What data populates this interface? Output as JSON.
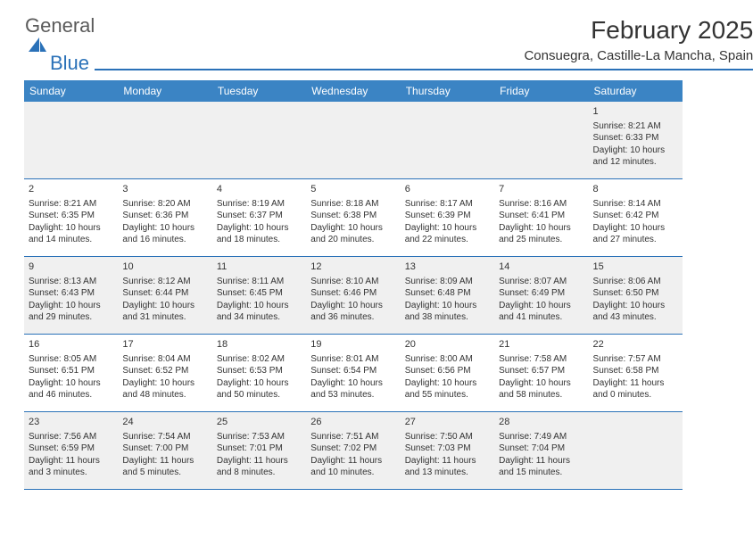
{
  "brand": {
    "text_general": "General",
    "text_blue": "Blue",
    "color_blue": "#2a71b8",
    "color_gray": "#5a5a5a"
  },
  "header": {
    "title": "February 2025",
    "location": "Consuegra, Castille-La Mancha, Spain"
  },
  "colors": {
    "header_bg": "#3b84c4",
    "header_fg": "#ffffff",
    "rule": "#2a71b8",
    "alt_row": "#f0f0f0",
    "text": "#333333"
  },
  "day_names": [
    "Sunday",
    "Monday",
    "Tuesday",
    "Wednesday",
    "Thursday",
    "Friday",
    "Saturday"
  ],
  "weeks": [
    {
      "alt": true,
      "days": [
        null,
        null,
        null,
        null,
        null,
        null,
        {
          "num": "1",
          "sunrise": "Sunrise: 8:21 AM",
          "sunset": "Sunset: 6:33 PM",
          "daylight": "Daylight: 10 hours and 12 minutes."
        }
      ]
    },
    {
      "alt": false,
      "days": [
        {
          "num": "2",
          "sunrise": "Sunrise: 8:21 AM",
          "sunset": "Sunset: 6:35 PM",
          "daylight": "Daylight: 10 hours and 14 minutes."
        },
        {
          "num": "3",
          "sunrise": "Sunrise: 8:20 AM",
          "sunset": "Sunset: 6:36 PM",
          "daylight": "Daylight: 10 hours and 16 minutes."
        },
        {
          "num": "4",
          "sunrise": "Sunrise: 8:19 AM",
          "sunset": "Sunset: 6:37 PM",
          "daylight": "Daylight: 10 hours and 18 minutes."
        },
        {
          "num": "5",
          "sunrise": "Sunrise: 8:18 AM",
          "sunset": "Sunset: 6:38 PM",
          "daylight": "Daylight: 10 hours and 20 minutes."
        },
        {
          "num": "6",
          "sunrise": "Sunrise: 8:17 AM",
          "sunset": "Sunset: 6:39 PM",
          "daylight": "Daylight: 10 hours and 22 minutes."
        },
        {
          "num": "7",
          "sunrise": "Sunrise: 8:16 AM",
          "sunset": "Sunset: 6:41 PM",
          "daylight": "Daylight: 10 hours and 25 minutes."
        },
        {
          "num": "8",
          "sunrise": "Sunrise: 8:14 AM",
          "sunset": "Sunset: 6:42 PM",
          "daylight": "Daylight: 10 hours and 27 minutes."
        }
      ]
    },
    {
      "alt": true,
      "days": [
        {
          "num": "9",
          "sunrise": "Sunrise: 8:13 AM",
          "sunset": "Sunset: 6:43 PM",
          "daylight": "Daylight: 10 hours and 29 minutes."
        },
        {
          "num": "10",
          "sunrise": "Sunrise: 8:12 AM",
          "sunset": "Sunset: 6:44 PM",
          "daylight": "Daylight: 10 hours and 31 minutes."
        },
        {
          "num": "11",
          "sunrise": "Sunrise: 8:11 AM",
          "sunset": "Sunset: 6:45 PM",
          "daylight": "Daylight: 10 hours and 34 minutes."
        },
        {
          "num": "12",
          "sunrise": "Sunrise: 8:10 AM",
          "sunset": "Sunset: 6:46 PM",
          "daylight": "Daylight: 10 hours and 36 minutes."
        },
        {
          "num": "13",
          "sunrise": "Sunrise: 8:09 AM",
          "sunset": "Sunset: 6:48 PM",
          "daylight": "Daylight: 10 hours and 38 minutes."
        },
        {
          "num": "14",
          "sunrise": "Sunrise: 8:07 AM",
          "sunset": "Sunset: 6:49 PM",
          "daylight": "Daylight: 10 hours and 41 minutes."
        },
        {
          "num": "15",
          "sunrise": "Sunrise: 8:06 AM",
          "sunset": "Sunset: 6:50 PM",
          "daylight": "Daylight: 10 hours and 43 minutes."
        }
      ]
    },
    {
      "alt": false,
      "days": [
        {
          "num": "16",
          "sunrise": "Sunrise: 8:05 AM",
          "sunset": "Sunset: 6:51 PM",
          "daylight": "Daylight: 10 hours and 46 minutes."
        },
        {
          "num": "17",
          "sunrise": "Sunrise: 8:04 AM",
          "sunset": "Sunset: 6:52 PM",
          "daylight": "Daylight: 10 hours and 48 minutes."
        },
        {
          "num": "18",
          "sunrise": "Sunrise: 8:02 AM",
          "sunset": "Sunset: 6:53 PM",
          "daylight": "Daylight: 10 hours and 50 minutes."
        },
        {
          "num": "19",
          "sunrise": "Sunrise: 8:01 AM",
          "sunset": "Sunset: 6:54 PM",
          "daylight": "Daylight: 10 hours and 53 minutes."
        },
        {
          "num": "20",
          "sunrise": "Sunrise: 8:00 AM",
          "sunset": "Sunset: 6:56 PM",
          "daylight": "Daylight: 10 hours and 55 minutes."
        },
        {
          "num": "21",
          "sunrise": "Sunrise: 7:58 AM",
          "sunset": "Sunset: 6:57 PM",
          "daylight": "Daylight: 10 hours and 58 minutes."
        },
        {
          "num": "22",
          "sunrise": "Sunrise: 7:57 AM",
          "sunset": "Sunset: 6:58 PM",
          "daylight": "Daylight: 11 hours and 0 minutes."
        }
      ]
    },
    {
      "alt": true,
      "days": [
        {
          "num": "23",
          "sunrise": "Sunrise: 7:56 AM",
          "sunset": "Sunset: 6:59 PM",
          "daylight": "Daylight: 11 hours and 3 minutes."
        },
        {
          "num": "24",
          "sunrise": "Sunrise: 7:54 AM",
          "sunset": "Sunset: 7:00 PM",
          "daylight": "Daylight: 11 hours and 5 minutes."
        },
        {
          "num": "25",
          "sunrise": "Sunrise: 7:53 AM",
          "sunset": "Sunset: 7:01 PM",
          "daylight": "Daylight: 11 hours and 8 minutes."
        },
        {
          "num": "26",
          "sunrise": "Sunrise: 7:51 AM",
          "sunset": "Sunset: 7:02 PM",
          "daylight": "Daylight: 11 hours and 10 minutes."
        },
        {
          "num": "27",
          "sunrise": "Sunrise: 7:50 AM",
          "sunset": "Sunset: 7:03 PM",
          "daylight": "Daylight: 11 hours and 13 minutes."
        },
        {
          "num": "28",
          "sunrise": "Sunrise: 7:49 AM",
          "sunset": "Sunset: 7:04 PM",
          "daylight": "Daylight: 11 hours and 15 minutes."
        },
        null
      ]
    }
  ]
}
